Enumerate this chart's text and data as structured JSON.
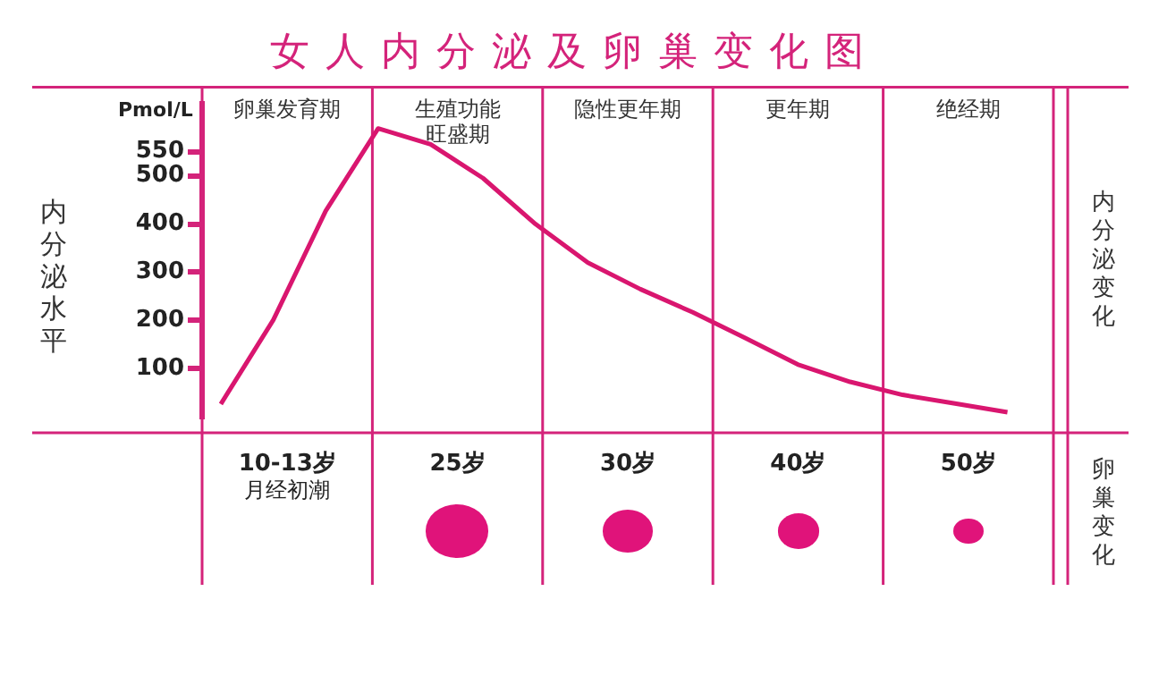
{
  "chart_data": [
    {
      "type": "line",
      "title": "女人内分泌及卵巢变化图",
      "ylabel": "内分泌水平",
      "y2label": "内分泌变化",
      "annotations": [
        "Pmol/L",
        "卵巢发育期",
        "生殖功能旺盛期",
        "隐性更年期",
        "更年期",
        "绝经期"
      ],
      "categories": [
        null,
        null,
        null,
        null,
        null,
        null,
        null,
        null,
        null,
        null,
        null,
        null,
        null,
        null,
        null,
        null
      ],
      "series": [
        {
          "color": "#d9166f",
          "values": [
            27,
            201,
            427,
            598,
            565,
            495,
            400,
            320,
            265,
            217,
            164,
            109,
            73,
            46,
            28,
            10
          ]
        }
      ],
      "ylim": [
        0,
        650
      ],
      "yticks": [
        100,
        200,
        300,
        400,
        500,
        550
      ],
      "tick_labels": "y"
    },
    {
      "type": "other",
      "y2label": "卵巢变化",
      "categories": [
        "10-13岁",
        "25岁",
        "30岁",
        "40岁",
        "50岁"
      ],
      "annotations": [
        "月经初潮"
      ]
    }
  ]
}
